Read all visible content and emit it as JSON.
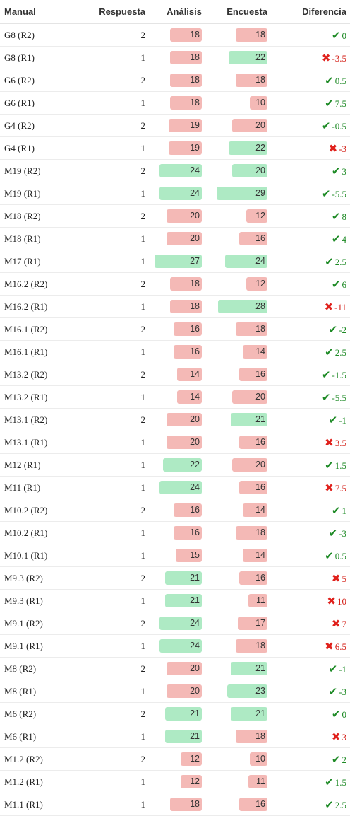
{
  "headers": {
    "manual": "Manual",
    "respuesta": "Respuesta",
    "analisis": "Análisis",
    "encuesta": "Encuesta",
    "diferencia": "Diferencia"
  },
  "scale": {
    "max": 29
  },
  "colors": {
    "good": "#aeeac4",
    "bad": "#f4b9b6",
    "ok": "#1d8a25",
    "ko": "#e0211c"
  },
  "rows": [
    {
      "manual": "G8 (R2)",
      "respuesta": "2",
      "analisis": "18",
      "analisis_status": "bad",
      "encuesta": "18",
      "encuesta_status": "bad",
      "dif_icon": "check-icon",
      "diferencia": "0"
    },
    {
      "manual": "G8 (R1)",
      "respuesta": "1",
      "analisis": "18",
      "analisis_status": "bad",
      "encuesta": "22",
      "encuesta_status": "good",
      "dif_icon": "cross-icon",
      "diferencia": "-3.5"
    },
    {
      "manual": "G6 (R2)",
      "respuesta": "2",
      "analisis": "18",
      "analisis_status": "bad",
      "encuesta": "18",
      "encuesta_status": "bad",
      "dif_icon": "check-icon",
      "diferencia": "0.5"
    },
    {
      "manual": "G6 (R1)",
      "respuesta": "1",
      "analisis": "18",
      "analisis_status": "bad",
      "encuesta": "10",
      "encuesta_status": "bad",
      "dif_icon": "check-icon",
      "diferencia": "7.5"
    },
    {
      "manual": "G4 (R2)",
      "respuesta": "2",
      "analisis": "19",
      "analisis_status": "bad",
      "encuesta": "20",
      "encuesta_status": "bad",
      "dif_icon": "check-icon",
      "diferencia": "-0.5"
    },
    {
      "manual": "G4 (R1)",
      "respuesta": "1",
      "analisis": "19",
      "analisis_status": "bad",
      "encuesta": "22",
      "encuesta_status": "good",
      "dif_icon": "cross-icon",
      "diferencia": "-3"
    },
    {
      "manual": "M19 (R2)",
      "respuesta": "2",
      "analisis": "24",
      "analisis_status": "good",
      "encuesta": "20",
      "encuesta_status": "good",
      "dif_icon": "check-icon",
      "diferencia": "3"
    },
    {
      "manual": "M19 (R1)",
      "respuesta": "1",
      "analisis": "24",
      "analisis_status": "good",
      "encuesta": "29",
      "encuesta_status": "good",
      "dif_icon": "check-icon",
      "diferencia": "-5.5"
    },
    {
      "manual": "M18 (R2)",
      "respuesta": "2",
      "analisis": "20",
      "analisis_status": "bad",
      "encuesta": "12",
      "encuesta_status": "bad",
      "dif_icon": "check-icon",
      "diferencia": "8"
    },
    {
      "manual": "M18 (R1)",
      "respuesta": "1",
      "analisis": "20",
      "analisis_status": "bad",
      "encuesta": "16",
      "encuesta_status": "bad",
      "dif_icon": "check-icon",
      "diferencia": "4"
    },
    {
      "manual": "M17 (R1)",
      "respuesta": "1",
      "analisis": "27",
      "analisis_status": "good",
      "encuesta": "24",
      "encuesta_status": "good",
      "dif_icon": "check-icon",
      "diferencia": "2.5"
    },
    {
      "manual": "M16.2 (R2)",
      "respuesta": "2",
      "analisis": "18",
      "analisis_status": "bad",
      "encuesta": "12",
      "encuesta_status": "bad",
      "dif_icon": "check-icon",
      "diferencia": "6"
    },
    {
      "manual": "M16.2 (R1)",
      "respuesta": "1",
      "analisis": "18",
      "analisis_status": "bad",
      "encuesta": "28",
      "encuesta_status": "good",
      "dif_icon": "cross-icon",
      "diferencia": "-11"
    },
    {
      "manual": "M16.1 (R2)",
      "respuesta": "2",
      "analisis": "16",
      "analisis_status": "bad",
      "encuesta": "18",
      "encuesta_status": "bad",
      "dif_icon": "check-icon",
      "diferencia": "-2"
    },
    {
      "manual": "M16.1 (R1)",
      "respuesta": "1",
      "analisis": "16",
      "analisis_status": "bad",
      "encuesta": "14",
      "encuesta_status": "bad",
      "dif_icon": "check-icon",
      "diferencia": "2.5"
    },
    {
      "manual": "M13.2 (R2)",
      "respuesta": "2",
      "analisis": "14",
      "analisis_status": "bad",
      "encuesta": "16",
      "encuesta_status": "bad",
      "dif_icon": "check-icon",
      "diferencia": "-1.5"
    },
    {
      "manual": "M13.2 (R1)",
      "respuesta": "1",
      "analisis": "14",
      "analisis_status": "bad",
      "encuesta": "20",
      "encuesta_status": "bad",
      "dif_icon": "check-icon",
      "diferencia": "-5.5"
    },
    {
      "manual": "M13.1 (R2)",
      "respuesta": "2",
      "analisis": "20",
      "analisis_status": "bad",
      "encuesta": "21",
      "encuesta_status": "good",
      "dif_icon": "check-icon",
      "diferencia": "-1"
    },
    {
      "manual": "M13.1 (R1)",
      "respuesta": "1",
      "analisis": "20",
      "analisis_status": "bad",
      "encuesta": "16",
      "encuesta_status": "bad",
      "dif_icon": "cross-icon",
      "diferencia": "3.5"
    },
    {
      "manual": "M12 (R1)",
      "respuesta": "1",
      "analisis": "22",
      "analisis_status": "good",
      "encuesta": "20",
      "encuesta_status": "bad",
      "dif_icon": "check-icon",
      "diferencia": "1.5"
    },
    {
      "manual": "M11 (R1)",
      "respuesta": "1",
      "analisis": "24",
      "analisis_status": "good",
      "encuesta": "16",
      "encuesta_status": "bad",
      "dif_icon": "cross-icon",
      "diferencia": "7.5"
    },
    {
      "manual": "M10.2 (R2)",
      "respuesta": "2",
      "analisis": "16",
      "analisis_status": "bad",
      "encuesta": "14",
      "encuesta_status": "bad",
      "dif_icon": "check-icon",
      "diferencia": "1"
    },
    {
      "manual": "M10.2 (R1)",
      "respuesta": "1",
      "analisis": "16",
      "analisis_status": "bad",
      "encuesta": "18",
      "encuesta_status": "bad",
      "dif_icon": "check-icon",
      "diferencia": "-3"
    },
    {
      "manual": "M10.1 (R1)",
      "respuesta": "1",
      "analisis": "15",
      "analisis_status": "bad",
      "encuesta": "14",
      "encuesta_status": "bad",
      "dif_icon": "check-icon",
      "diferencia": "0.5"
    },
    {
      "manual": "M9.3 (R2)",
      "respuesta": "2",
      "analisis": "21",
      "analisis_status": "good",
      "encuesta": "16",
      "encuesta_status": "bad",
      "dif_icon": "cross-icon",
      "diferencia": "5"
    },
    {
      "manual": "M9.3 (R1)",
      "respuesta": "1",
      "analisis": "21",
      "analisis_status": "good",
      "encuesta": "11",
      "encuesta_status": "bad",
      "dif_icon": "cross-icon",
      "diferencia": "10"
    },
    {
      "manual": "M9.1 (R2)",
      "respuesta": "2",
      "analisis": "24",
      "analisis_status": "good",
      "encuesta": "17",
      "encuesta_status": "bad",
      "dif_icon": "cross-icon",
      "diferencia": "7"
    },
    {
      "manual": "M9.1 (R1)",
      "respuesta": "1",
      "analisis": "24",
      "analisis_status": "good",
      "encuesta": "18",
      "encuesta_status": "bad",
      "dif_icon": "cross-icon",
      "diferencia": "6.5"
    },
    {
      "manual": "M8 (R2)",
      "respuesta": "2",
      "analisis": "20",
      "analisis_status": "bad",
      "encuesta": "21",
      "encuesta_status": "good",
      "dif_icon": "check-icon",
      "diferencia": "-1"
    },
    {
      "manual": "M8 (R1)",
      "respuesta": "1",
      "analisis": "20",
      "analisis_status": "bad",
      "encuesta": "23",
      "encuesta_status": "good",
      "dif_icon": "check-icon",
      "diferencia": "-3"
    },
    {
      "manual": "M6 (R2)",
      "respuesta": "2",
      "analisis": "21",
      "analisis_status": "good",
      "encuesta": "21",
      "encuesta_status": "good",
      "dif_icon": "check-icon",
      "diferencia": "0"
    },
    {
      "manual": "M6 (R1)",
      "respuesta": "1",
      "analisis": "21",
      "analisis_status": "good",
      "encuesta": "18",
      "encuesta_status": "bad",
      "dif_icon": "cross-icon",
      "diferencia": "3"
    },
    {
      "manual": "M1.2 (R2)",
      "respuesta": "2",
      "analisis": "12",
      "analisis_status": "bad",
      "encuesta": "10",
      "encuesta_status": "bad",
      "dif_icon": "check-icon",
      "diferencia": "2"
    },
    {
      "manual": "M1.2 (R1)",
      "respuesta": "1",
      "analisis": "12",
      "analisis_status": "bad",
      "encuesta": "11",
      "encuesta_status": "bad",
      "dif_icon": "check-icon",
      "diferencia": "1.5"
    },
    {
      "manual": "M1.1 (R1)",
      "respuesta": "1",
      "analisis": "18",
      "analisis_status": "bad",
      "encuesta": "16",
      "encuesta_status": "bad",
      "dif_icon": "check-icon",
      "diferencia": "2.5"
    }
  ]
}
